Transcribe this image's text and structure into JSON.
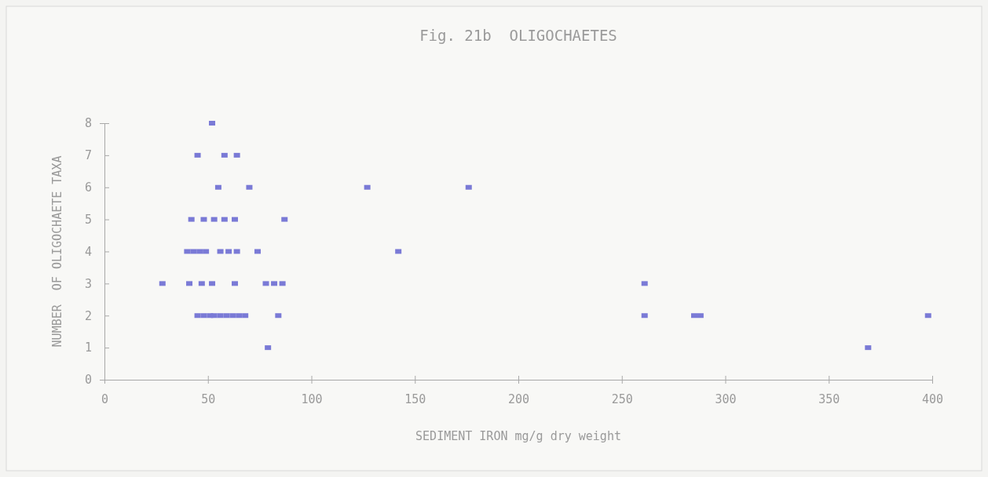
{
  "chart_data": {
    "type": "scatter",
    "title": "Fig. 21b  OLIGOCHAETES",
    "xlabel": "SEDIMENT IRON mg/g dry weight",
    "ylabel": "NUMBER  OF OLIGOCHAETE TAXA",
    "series": [
      {
        "color": "#7a7ad6",
        "x": [
          52,
          45,
          58,
          64,
          55,
          70,
          127,
          176,
          42,
          48,
          53,
          58,
          63,
          87,
          40,
          43,
          46,
          49,
          56,
          60,
          64,
          74,
          142,
          28,
          41,
          47,
          52,
          63,
          78,
          82,
          86,
          261,
          45,
          48,
          51,
          53,
          56,
          59,
          62,
          65,
          68,
          84,
          261,
          285,
          288,
          398,
          79,
          369
        ],
        "values": [
          8,
          7,
          7,
          7,
          6,
          6,
          6,
          6,
          5,
          5,
          5,
          5,
          5,
          5,
          4,
          4,
          4,
          4,
          4,
          4,
          4,
          4,
          4,
          3,
          3,
          3,
          3,
          3,
          3,
          3,
          3,
          3,
          2,
          2,
          2,
          2,
          2,
          2,
          2,
          2,
          2,
          2,
          2,
          2,
          2,
          2,
          1,
          1
        ]
      }
    ],
    "marker": "square",
    "grid": false,
    "xlim": [
      0,
      400
    ],
    "xticks": [
      0,
      50,
      100,
      150,
      200,
      250,
      300,
      350,
      400
    ],
    "ylim": [
      0,
      8
    ],
    "yticks": [
      0,
      1,
      2,
      3,
      4,
      5,
      6,
      7,
      8
    ]
  }
}
